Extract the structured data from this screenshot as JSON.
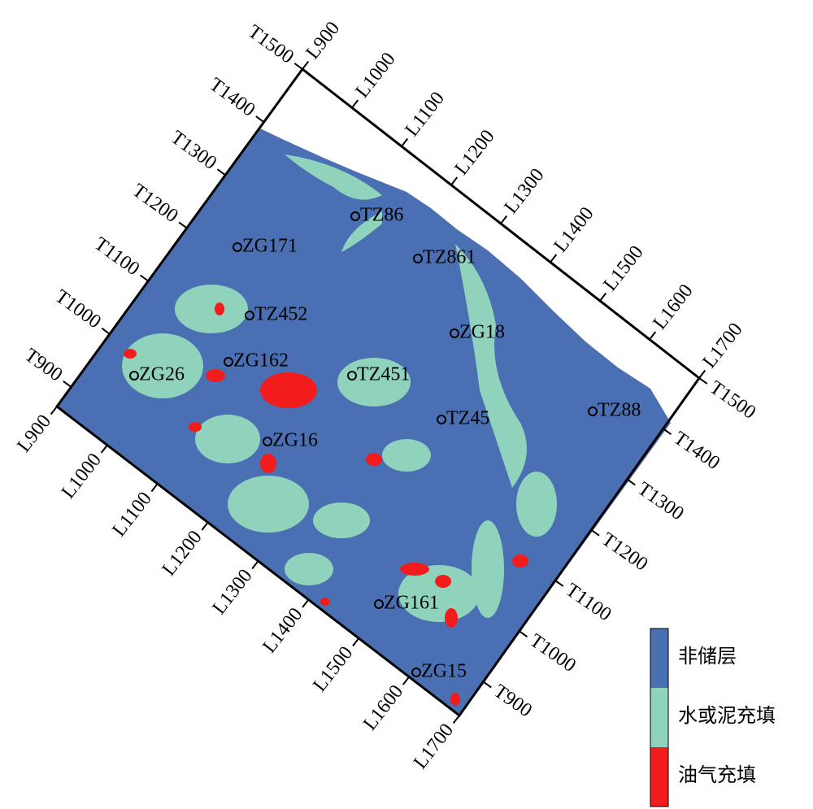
{
  "frame": {
    "t_left": [
      "T900",
      "T1000",
      "T1100",
      "T1200",
      "T1300",
      "T1400",
      "T1500"
    ],
    "l_top": [
      "L900",
      "L1000",
      "L1100",
      "L1200",
      "L1300",
      "L1400",
      "L1500",
      "L1600",
      "L1700"
    ],
    "t_right": [
      "T1500",
      "T1400",
      "T1300",
      "T1200",
      "T1100",
      "T1000",
      "T900"
    ],
    "l_bottom": [
      "L900",
      "L1000",
      "L1100",
      "L1200",
      "L1300",
      "L1400",
      "L1500",
      "L1600",
      "L1700"
    ]
  },
  "wells": [
    {
      "label": "TZ86"
    },
    {
      "label": "ZG171"
    },
    {
      "label": "TZ861"
    },
    {
      "label": "TZ452"
    },
    {
      "label": "ZG18"
    },
    {
      "label": "ZG162"
    },
    {
      "label": "ZG26"
    },
    {
      "label": "TZ451"
    },
    {
      "label": "TZ45"
    },
    {
      "label": "TZ88"
    },
    {
      "label": "ZG16"
    },
    {
      "label": "ZG161"
    },
    {
      "label": "ZG15"
    }
  ],
  "legend": [
    {
      "label": "非储层",
      "color": "#4a6fb2"
    },
    {
      "label": "水或泥充填",
      "color": "#8fd3bd"
    },
    {
      "label": "油气充填",
      "color": "#f21c1c"
    }
  ]
}
